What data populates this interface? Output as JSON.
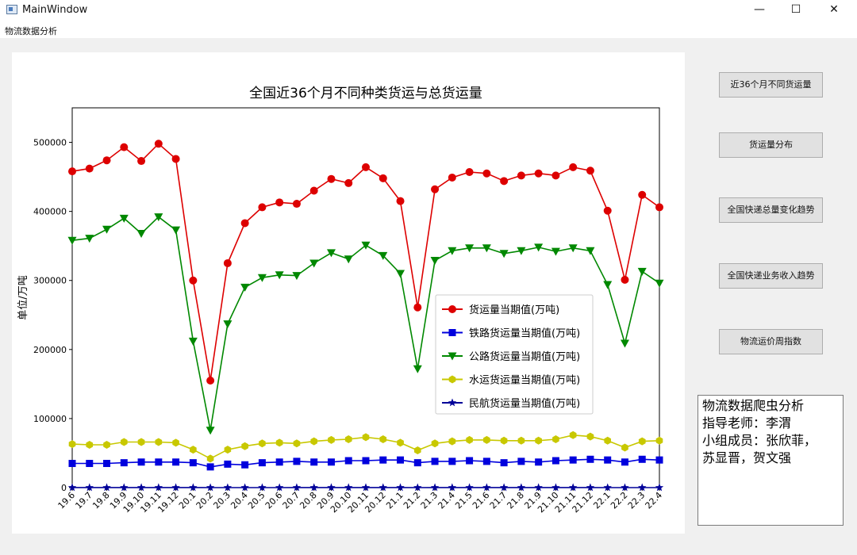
{
  "window": {
    "title": "MainWindow"
  },
  "window_controls": {
    "minimize": "—",
    "maximize": "☐",
    "close": "✕"
  },
  "menu": {
    "items": [
      "物流数据分析"
    ]
  },
  "sidebar": {
    "buttons": [
      {
        "label": "近36个月不同货运量"
      },
      {
        "label": "货运量分布"
      },
      {
        "label": "全国快递总量变化趋势"
      },
      {
        "label": "全国快递业务收入趋势"
      },
      {
        "label": "物流运价周指数"
      }
    ]
  },
  "info": {
    "lines": [
      "物流数据爬虫分析",
      "指导老师：李渭",
      "小组成员：张欣菲，",
      "苏显晋，贺文强"
    ]
  },
  "chart_data": {
    "type": "line",
    "title": "全国近36个月不同种类货运与总货运量",
    "xlabel": "",
    "ylabel": "单位/万吨",
    "ylim": [
      0,
      550000
    ],
    "yticks": [
      0,
      100000,
      200000,
      300000,
      400000,
      500000
    ],
    "grid": false,
    "legend_position": "center-right",
    "categories": [
      "19.6",
      "19.7",
      "19.8",
      "19.9",
      "19.10",
      "19.11",
      "19.12",
      "20.1",
      "20.2",
      "20.3",
      "20.4",
      "20.5",
      "20.6",
      "20.7",
      "20.8",
      "20.9",
      "20.10",
      "20.11",
      "20.12",
      "21.1",
      "21.2",
      "21.3",
      "21.4",
      "21.5",
      "21.6",
      "21.7",
      "21.8",
      "21.9",
      "21.10",
      "21.11",
      "21.12",
      "22.1",
      "22.2",
      "22.3",
      "22.4"
    ],
    "series": [
      {
        "name": "货运量当期值(万吨)",
        "color": "#dd0000",
        "marker": "circle",
        "values": [
          458000,
          462000,
          474000,
          493000,
          473000,
          498000,
          476000,
          300000,
          155000,
          325000,
          383000,
          406000,
          413000,
          411000,
          430000,
          447000,
          441000,
          464000,
          448000,
          415000,
          261000,
          432000,
          449000,
          457000,
          455000,
          444000,
          452000,
          455000,
          452000,
          464000,
          459000,
          401000,
          301000,
          424000,
          406000
        ]
      },
      {
        "name": "铁路货运量当期值(万吨)",
        "color": "#0000dd",
        "marker": "square",
        "values": [
          35000,
          35000,
          35000,
          36000,
          37000,
          37000,
          37000,
          36000,
          30000,
          34000,
          33000,
          36000,
          37000,
          38000,
          37000,
          37000,
          39000,
          39000,
          40000,
          40000,
          36000,
          38000,
          38000,
          39000,
          38000,
          36000,
          38000,
          37000,
          39000,
          40000,
          41000,
          40000,
          37000,
          41000,
          40000
        ]
      },
      {
        "name": "公路货运量当期值(万吨)",
        "color": "#008800",
        "marker": "triangle-down",
        "values": [
          358000,
          361000,
          374000,
          390000,
          368000,
          392000,
          373000,
          212000,
          83000,
          237000,
          290000,
          304000,
          308000,
          307000,
          325000,
          340000,
          331000,
          351000,
          336000,
          310000,
          172000,
          329000,
          343000,
          347000,
          347000,
          339000,
          343000,
          348000,
          342000,
          347000,
          343000,
          294000,
          209000,
          313000,
          296000
        ]
      },
      {
        "name": "水运货运量当期值(万吨)",
        "color": "#c8c800",
        "marker": "hexagon",
        "values": [
          63000,
          62000,
          62000,
          66000,
          66000,
          66000,
          65000,
          55000,
          42000,
          55000,
          60000,
          64000,
          65000,
          64000,
          67000,
          69000,
          70000,
          73000,
          70000,
          65000,
          54000,
          64000,
          67000,
          69000,
          69000,
          68000,
          68000,
          68000,
          70000,
          76000,
          74000,
          68000,
          58000,
          67000,
          68000
        ]
      },
      {
        "name": "民航货运量当期值(万吨)",
        "color": "#000099",
        "marker": "star",
        "values": [
          60,
          63,
          65,
          66,
          65,
          69,
          70,
          58,
          40,
          49,
          50,
          55,
          57,
          60,
          59,
          62,
          66,
          68,
          71,
          60,
          52,
          65,
          64,
          64,
          63,
          61,
          63,
          58,
          63,
          59,
          65,
          55,
          55,
          54,
          45
        ]
      }
    ]
  }
}
